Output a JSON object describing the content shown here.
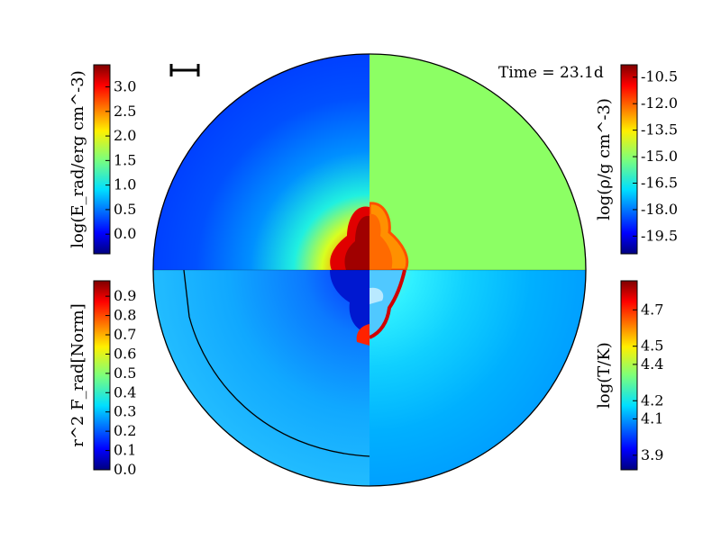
{
  "chart_data": {
    "type": "heatmap",
    "title": "",
    "annotation": {
      "time_text": "Time = 23.1d"
    },
    "colormap": "jet",
    "panels": [
      {
        "id": "radiation-energy-density",
        "quadrant": "top-left",
        "label_text": "log(E_rad/erg cm^-3)",
        "ticks": [
          "3.0",
          "2.5",
          "2.0",
          "1.5",
          "1.0",
          "0.5",
          "0.0"
        ],
        "tick_values": [
          3.0,
          2.5,
          2.0,
          1.5,
          1.0,
          0.5,
          0.0
        ],
        "range": [
          -0.4,
          3.45
        ]
      },
      {
        "id": "density",
        "quadrant": "top-right",
        "label_text": "log(ρ/g cm^-3)",
        "ticks": [
          "-10.5",
          "-12.0",
          "-13.5",
          "-15.0",
          "-16.5",
          "-18.0",
          "-19.5"
        ],
        "tick_values": [
          -10.5,
          -12.0,
          -13.5,
          -15.0,
          -16.5,
          -18.0,
          -19.5
        ],
        "range": [
          -20.5,
          -9.8
        ]
      },
      {
        "id": "radiation-flux",
        "quadrant": "bottom-left",
        "label_text": "r^2 F_rad[Norm]",
        "ticks": [
          "0.9",
          "0.8",
          "0.7",
          "0.6",
          "0.5",
          "0.4",
          "0.3",
          "0.2",
          "0.1",
          "0.0"
        ],
        "tick_values": [
          0.9,
          0.8,
          0.7,
          0.6,
          0.5,
          0.4,
          0.3,
          0.2,
          0.1,
          0.0
        ],
        "range": [
          0.0,
          0.98
        ]
      },
      {
        "id": "temperature",
        "quadrant": "bottom-right",
        "label_text": "log(T/K)",
        "ticks": [
          "4.7",
          "4.5",
          "4.4",
          "4.2",
          "4.1",
          "3.9"
        ],
        "tick_values": [
          4.7,
          4.5,
          4.4,
          4.2,
          4.1,
          3.9
        ],
        "range": [
          3.82,
          4.86
        ]
      }
    ]
  }
}
